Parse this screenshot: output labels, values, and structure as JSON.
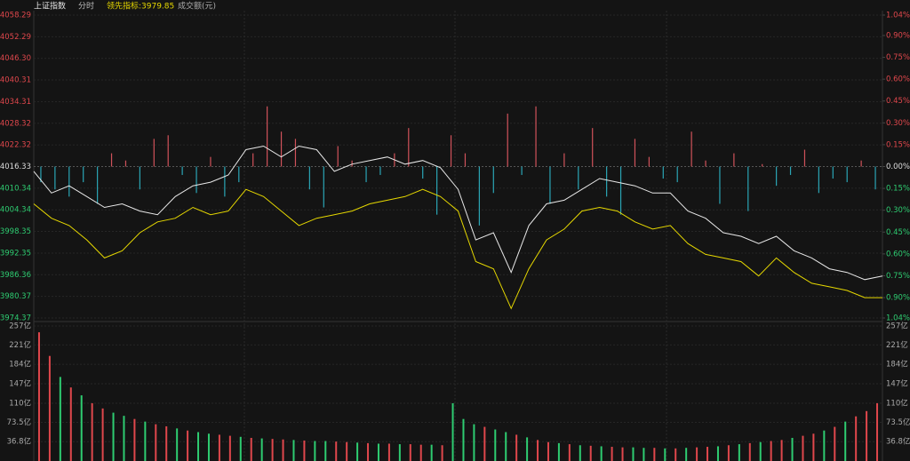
{
  "chart_data": [
    {
      "type": "line",
      "title": "上证指数",
      "subtitle": "分时",
      "annotation": "领先指标:3979.85",
      "ylim": [
        3974.37,
        4058.29
      ],
      "yticks": [
        4058.29,
        4052.29,
        {
          "value": 4046.3,
          "label": "4046.30"
        },
        4040.31,
        4034.31,
        4028.32,
        4022.32,
        4016.33,
        4010.34,
        4004.34,
        3998.35,
        3992.35,
        3986.36,
        3980.37,
        3974.37
      ],
      "y2lim": [
        -1.04,
        1.04
      ],
      "y2ticks": [
        {
          "value": 1.04,
          "label": "1.04%"
        },
        {
          "value": 0.9,
          "label": "0.90%"
        },
        {
          "value": 0.75,
          "label": "0.75%"
        },
        {
          "value": 0.6,
          "label": "0.60%"
        },
        {
          "value": 0.45,
          "label": "0.45%"
        },
        {
          "value": 0.3,
          "label": "0.30%"
        },
        {
          "value": 0.15,
          "label": "0.15%"
        },
        {
          "value": 0,
          "label": "0.00%"
        },
        {
          "value": -0.15,
          "label": "0.15%"
        },
        {
          "value": -0.3,
          "label": "0.30%"
        },
        {
          "value": -0.45,
          "label": "0.45%"
        },
        {
          "value": -0.6,
          "label": "0.60%"
        },
        {
          "value": -0.75,
          "label": "0.75%"
        },
        {
          "value": -0.9,
          "label": "0.90%"
        },
        {
          "value": -1.04,
          "label": "1.04%"
        }
      ],
      "up_color": "#e0474c",
      "down_color": "#2ecc71",
      "series": [
        {
          "color": "#e8e8e8",
          "values": [
            4015,
            4009,
            4011,
            4008,
            4005,
            4006,
            4004,
            4003,
            4008,
            4011,
            4012,
            4014,
            4021,
            4022,
            4019,
            4022,
            4021,
            4015,
            4017,
            4018,
            4019,
            4017,
            4018,
            4016,
            4010,
            3996,
            3998,
            3987,
            4000,
            4006,
            4007,
            4010,
            4013,
            4012,
            4011,
            4009,
            4009,
            4004,
            4002,
            3998,
            3997,
            3995,
            3997,
            3993,
            3991,
            3988,
            3987,
            3985,
            3986
          ]
        },
        {
          "color": "#e6d800",
          "values": [
            4006,
            4002,
            4000,
            3996,
            3991,
            3993,
            3998,
            4001,
            4002,
            4005,
            4003,
            4004,
            4010,
            4008,
            4004,
            4000,
            4002,
            4003,
            4004,
            4006,
            4007,
            4008,
            4010,
            4008,
            4004,
            3990,
            3988,
            3977,
            3988,
            3996,
            3999,
            4004,
            4005,
            4004,
            4001,
            3999,
            4000,
            3995,
            3992,
            3991,
            3990,
            3986,
            3991,
            3987,
            3984,
            3983,
            3982,
            3980,
            3980
          ]
        }
      ],
      "bars": {
        "up_color": "#d0525a",
        "down_color": "#2aa5b5",
        "values": [
          4012,
          4010,
          4008,
          4012,
          4006,
          4020,
          4018,
          4010,
          4024,
          4025,
          4014,
          4009,
          4019,
          4008,
          4012,
          4020,
          4033,
          4026,
          4024,
          4010,
          4005,
          4022,
          4018,
          4012,
          4014,
          4020,
          4027,
          4013,
          4003,
          4025,
          4020,
          4000,
          4009,
          4031,
          4014,
          4033,
          4006,
          4020,
          4010,
          4027,
          4008,
          4003,
          4024,
          4019,
          4013,
          4012,
          4026,
          4018,
          4006,
          4020,
          4004,
          4017,
          4011,
          4014,
          4021,
          4009,
          4013,
          4012,
          4018,
          4010
        ]
      }
    },
    {
      "type": "bar",
      "title": "成交额(元)",
      "ylim": [
        0,
        257
      ],
      "yticks": [
        {
          "value": 257,
          "label": "257亿"
        },
        {
          "value": 221,
          "label": "221亿"
        },
        {
          "value": 184,
          "label": "184亿"
        },
        {
          "value": 147,
          "label": "147亿"
        },
        {
          "value": 110,
          "label": "110亿"
        },
        {
          "value": 73.5,
          "label": "73.5亿"
        },
        {
          "value": 36.8,
          "label": "36.8亿"
        }
      ],
      "values": [
        245,
        200,
        160,
        140,
        125,
        110,
        100,
        92,
        86,
        80,
        75,
        70,
        66,
        62,
        58,
        55,
        52,
        50,
        48,
        46,
        44,
        43,
        42,
        41,
        40,
        39,
        38,
        38,
        37,
        36,
        35,
        34,
        33,
        33,
        32,
        32,
        31,
        31,
        30,
        110,
        80,
        70,
        65,
        60,
        55,
        50,
        45,
        40,
        36,
        34,
        32,
        30,
        29,
        28,
        27,
        26,
        26,
        25,
        25,
        24,
        24,
        25,
        26,
        27,
        28,
        30,
        32,
        34,
        36,
        38,
        40,
        44,
        48,
        52,
        58,
        65,
        75,
        85,
        95,
        110
      ],
      "colors": [
        "#e0474c",
        "#e0474c",
        "#2ecc71",
        "#e0474c",
        "#2ecc71",
        "#e0474c",
        "#e0474c",
        "#2ecc71",
        "#2ecc71",
        "#e0474c",
        "#2ecc71",
        "#e0474c",
        "#e0474c",
        "#2ecc71",
        "#e0474c",
        "#2ecc71",
        "#2ecc71",
        "#e0474c",
        "#e0474c",
        "#2ecc71",
        "#e0474c",
        "#2ecc71",
        "#e0474c",
        "#e0474c",
        "#2ecc71",
        "#e0474c",
        "#2ecc71",
        "#2ecc71",
        "#e0474c",
        "#e0474c",
        "#2ecc71",
        "#e0474c",
        "#2ecc71",
        "#e0474c",
        "#2ecc71",
        "#e0474c",
        "#e0474c",
        "#2ecc71",
        "#e0474c",
        "#2ecc71",
        "#2ecc71",
        "#2ecc71",
        "#e0474c",
        "#2ecc71",
        "#2ecc71",
        "#e0474c",
        "#2ecc71",
        "#e0474c",
        "#e0474c",
        "#2ecc71",
        "#e0474c",
        "#2ecc71",
        "#e0474c",
        "#2ecc71",
        "#e0474c",
        "#e0474c",
        "#2ecc71",
        "#2ecc71",
        "#e0474c",
        "#2ecc71",
        "#e0474c",
        "#2ecc71",
        "#e0474c",
        "#e0474c",
        "#2ecc71",
        "#e0474c",
        "#2ecc71",
        "#e0474c",
        "#2ecc71",
        "#e0474c",
        "#e0474c",
        "#2ecc71",
        "#e0474c",
        "#e0474c",
        "#2ecc71",
        "#e0474c",
        "#2ecc71",
        "#e0474c",
        "#e0474c",
        "#e0474c"
      ]
    }
  ]
}
